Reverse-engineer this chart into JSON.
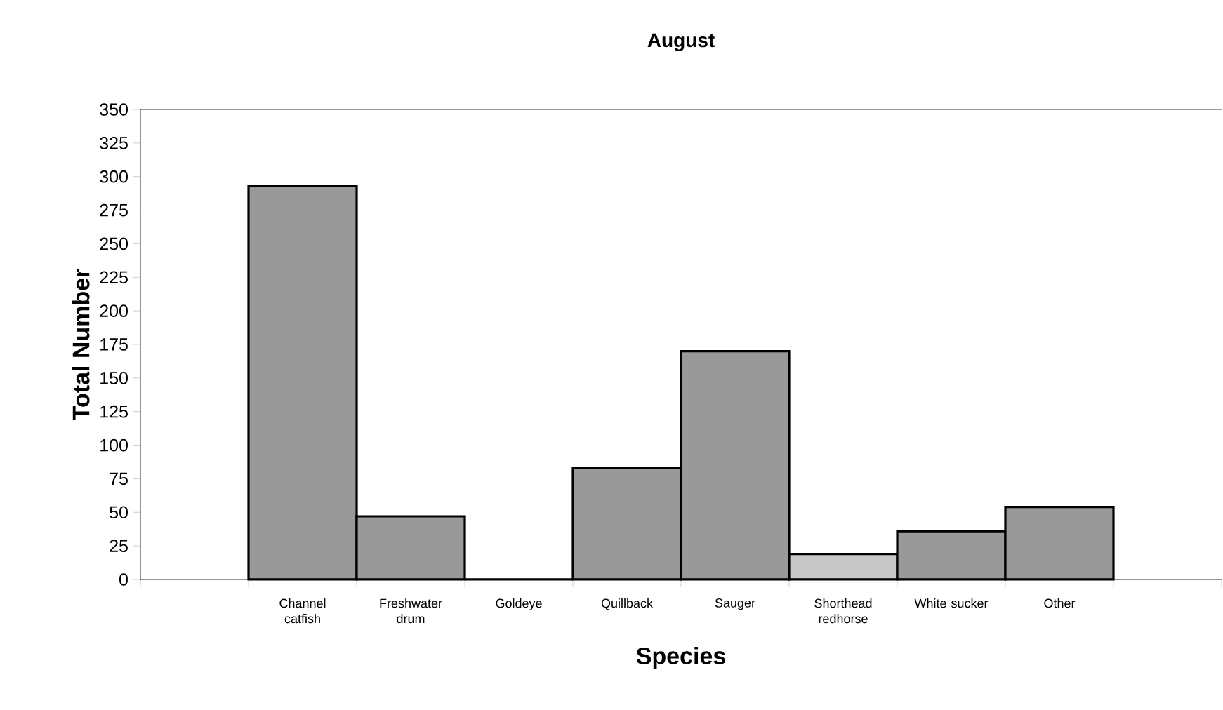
{
  "chart_data": {
    "type": "bar",
    "title": "August",
    "xlabel": "Species",
    "ylabel": "Total Number",
    "categories": [
      null,
      "Channel catfish",
      "Freshwater drum",
      "Goldeye",
      "Quillback",
      "Sauger",
      "Shorthead redhorse",
      "White sucker",
      "Other",
      null
    ],
    "values": [
      null,
      293,
      47,
      0,
      83,
      170,
      19,
      36,
      54,
      null
    ],
    "colors": [
      null,
      "#999999",
      "#999999",
      "#999999",
      "#999999",
      "#999999",
      "#c8c8c8",
      "#999999",
      "#999999",
      null
    ],
    "ylim": [
      0,
      350
    ],
    "yticks": [
      0,
      25,
      50,
      75,
      100,
      125,
      150,
      175,
      200,
      225,
      250,
      275,
      300,
      325,
      350
    ]
  }
}
